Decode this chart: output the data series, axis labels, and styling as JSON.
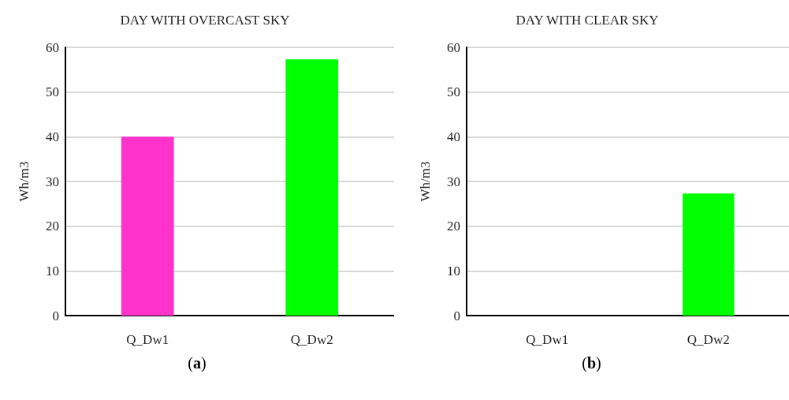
{
  "chart_data": [
    {
      "type": "bar",
      "title": "DAY WITH OVERCAST SKY",
      "ylabel": "Wh/m3",
      "categories": [
        "Q_Dw1",
        "Q_Dw2"
      ],
      "values": [
        40,
        57.3
      ],
      "colors": [
        "#ff33cc",
        "#00ff00"
      ],
      "ylim": [
        0,
        60
      ],
      "yticks": [
        0,
        10,
        20,
        30,
        40,
        50,
        60
      ],
      "grid": "y",
      "annotations": [
        "(a)"
      ]
    },
    {
      "type": "bar",
      "title": "DAY WITH CLEAR SKY",
      "ylabel": "Wh/m3",
      "categories": [
        "Q_Dw1",
        "Q_Dw2"
      ],
      "values": [
        0,
        27.3
      ],
      "colors": [
        "#ff33cc",
        "#00ff00"
      ],
      "ylim": [
        0,
        60
      ],
      "yticks": [
        0,
        10,
        20,
        30,
        40,
        50,
        60
      ],
      "grid": "y",
      "annotations": [
        "(b)"
      ]
    }
  ]
}
